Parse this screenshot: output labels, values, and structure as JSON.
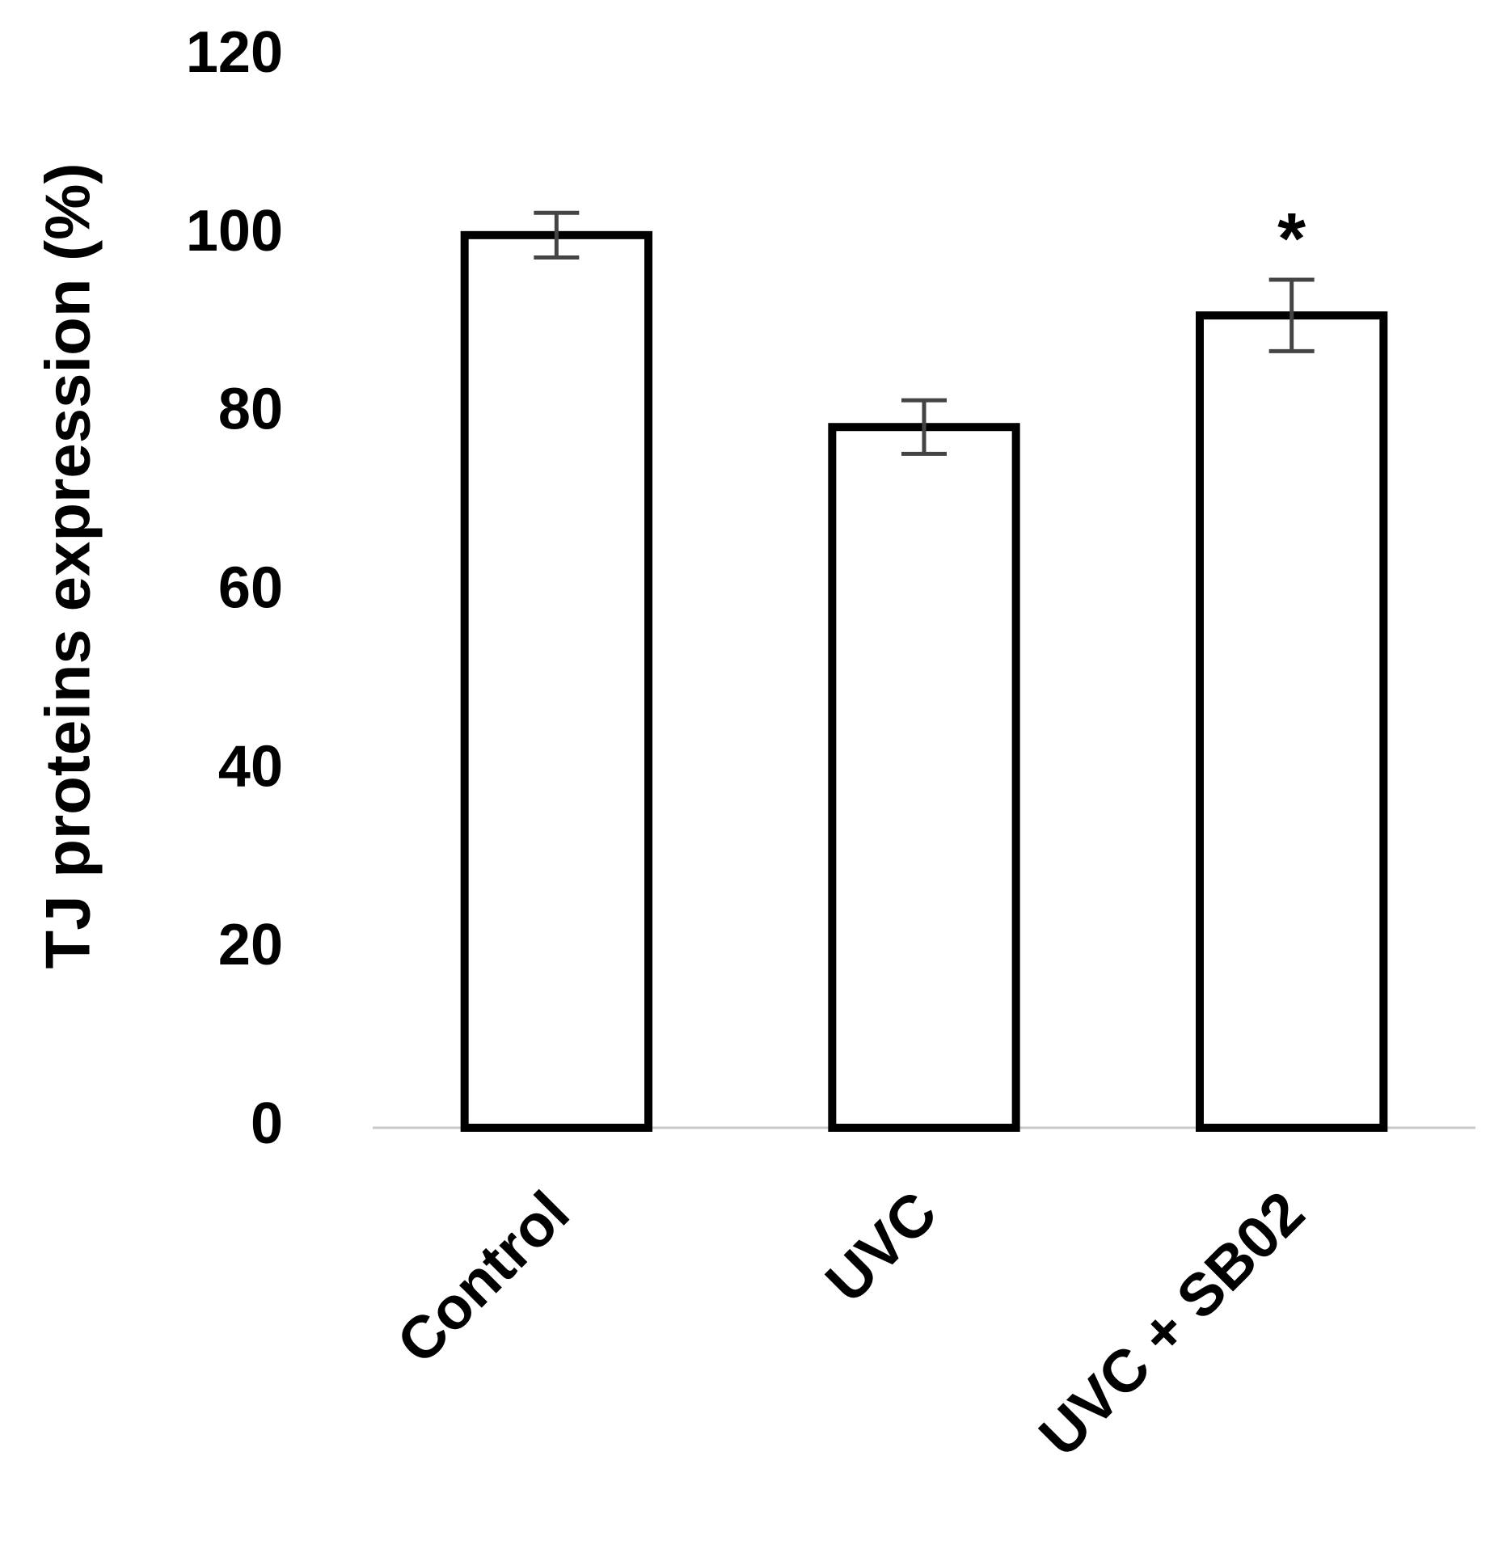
{
  "chart_data": {
    "type": "bar",
    "ylabel": "TJ proteins expression (%)",
    "categories": [
      "Control",
      "UVC",
      "UVC + SB02"
    ],
    "values": [
      100,
      78.5,
      91
    ],
    "errors": [
      2.5,
      3,
      4
    ],
    "significance": [
      null,
      null,
      "*"
    ],
    "color": "#ffffff",
    "edge_color": "#000000",
    "error_color": "#444444",
    "ylim": [
      0,
      120
    ],
    "yticks": [
      0,
      20,
      40,
      60,
      80,
      100,
      120
    ],
    "grid": false
  }
}
